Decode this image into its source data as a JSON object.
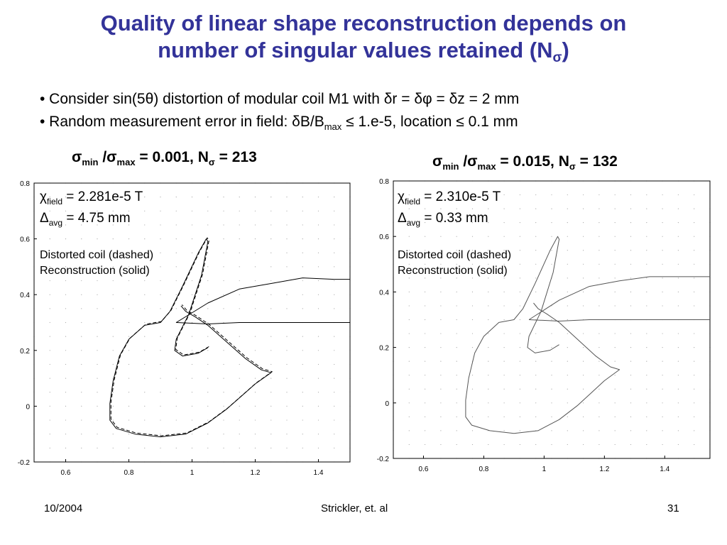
{
  "title": {
    "line1": "Quality of linear shape reconstruction depends on",
    "line2": "number of singular values retained (N",
    "line2_sub": "σ",
    "line2_end": ")"
  },
  "bullets": [
    {
      "text": "• Consider sin(5θ) distortion of modular coil M1 with δr = δφ = δz = 2 mm"
    },
    {
      "pre": "• Random measurement error in field: δB/B",
      "sub": "max",
      "post": " ≤ 1.e-5, location ≤ 0.1 mm"
    }
  ],
  "plots": [
    {
      "heading": {
        "s1": "σ",
        "s1sub": "min",
        "slash": " /",
        "s2": "σ",
        "s2sub": "max",
        "mid": " = 0.001, N",
        "nsub": "σ",
        "end": " = 213"
      },
      "chi": {
        "sym": "χ",
        "sub": "field",
        "val": " = 2.281e-5 T"
      },
      "delta": {
        "sym": "Δ",
        "sub": "avg",
        "val": " = 4.75 mm"
      },
      "note1": "Distorted coil (dashed)",
      "note2": "Reconstruction (solid)"
    },
    {
      "heading": {
        "s1": "σ",
        "s1sub": "min",
        "slash": " /",
        "s2": "σ",
        "s2sub": "max",
        "mid": " = 0.015, N",
        "nsub": "σ",
        "end": " = 132"
      },
      "chi": {
        "sym": "χ",
        "sub": "field",
        "val": " = 2.310e-5 T"
      },
      "delta": {
        "sym": "Δ",
        "sub": "avg",
        "val": " = 0.33 mm"
      },
      "note1": "Distorted coil (dashed)",
      "note2": "Reconstruction (solid)"
    }
  ],
  "chart_data": [
    {
      "type": "line",
      "xlim": [
        0.5,
        1.5
      ],
      "ylim": [
        -0.2,
        0.8
      ],
      "xticks": [
        0.6,
        0.8,
        1,
        1.2,
        1.4
      ],
      "yticks": [
        -0.2,
        0,
        0.2,
        0.4,
        0.6,
        0.8
      ],
      "xtick_labels": [
        "0.6",
        "0.8",
        "1",
        "1.2",
        "1.4"
      ],
      "ytick_labels": [
        "-0.2",
        "0",
        "0.2",
        "0.4",
        "0.6",
        "0.8"
      ],
      "grid": "dotted",
      "series": [
        {
          "style": "dashed",
          "x": [
            1.05,
            1.02,
            0.97,
            0.945,
            0.95,
            0.99,
            1.03,
            1.05,
            1.045,
            1.02,
            0.97,
            0.93,
            0.9,
            0.85,
            0.8,
            0.77,
            0.75,
            0.74,
            0.74,
            0.76,
            0.82,
            0.9,
            0.98,
            1.05,
            1.11,
            1.16,
            1.2,
            1.25,
            1.22,
            1.17,
            1.1,
            1.05,
            1.01,
            0.98,
            0.965
          ],
          "y": [
            0.21,
            0.19,
            0.18,
            0.2,
            0.24,
            0.33,
            0.47,
            0.59,
            0.6,
            0.55,
            0.43,
            0.34,
            0.3,
            0.29,
            0.24,
            0.18,
            0.09,
            0.01,
            -0.05,
            -0.08,
            -0.1,
            -0.11,
            -0.1,
            -0.06,
            -0.01,
            0.04,
            0.08,
            0.12,
            0.13,
            0.17,
            0.24,
            0.29,
            0.32,
            0.34,
            0.36
          ]
        },
        {
          "style": "solid",
          "x": [
            1.05,
            1.02,
            0.97,
            0.945,
            0.95,
            0.99,
            1.03,
            1.05,
            1.045,
            1.02,
            0.97,
            0.93,
            0.9,
            0.85,
            0.8,
            0.77,
            0.75,
            0.74,
            0.74,
            0.76,
            0.82,
            0.9,
            0.98,
            1.05,
            1.11,
            1.16,
            1.2,
            1.25,
            1.22,
            1.17,
            1.1,
            1.05,
            1.01,
            0.98,
            0.965
          ],
          "y": [
            0.21,
            0.19,
            0.18,
            0.2,
            0.24,
            0.33,
            0.47,
            0.59,
            0.6,
            0.55,
            0.43,
            0.34,
            0.3,
            0.29,
            0.24,
            0.18,
            0.09,
            0.01,
            -0.05,
            -0.08,
            -0.1,
            -0.11,
            -0.1,
            -0.06,
            -0.01,
            0.04,
            0.08,
            0.12,
            0.13,
            0.17,
            0.24,
            0.29,
            0.32,
            0.34,
            0.36
          ]
        },
        {
          "style": "solid",
          "x": [
            0.95,
            1.05,
            1.15,
            1.25,
            1.35,
            1.45,
            1.5
          ],
          "y": [
            0.3,
            0.37,
            0.42,
            0.44,
            0.46,
            0.455,
            0.455
          ]
        },
        {
          "style": "solid",
          "x": [
            0.95,
            1.05,
            1.15,
            1.25,
            1.35,
            1.45,
            1.5
          ],
          "y": [
            0.3,
            0.295,
            0.3,
            0.3,
            0.3,
            0.3,
            0.3
          ]
        }
      ]
    },
    {
      "type": "line",
      "xlim": [
        0.5,
        1.55
      ],
      "ylim": [
        -0.2,
        0.8
      ],
      "xticks": [
        0.6,
        0.8,
        1,
        1.2,
        1.4
      ],
      "yticks": [
        -0.2,
        0,
        0.2,
        0.4,
        0.6,
        0.8
      ],
      "xtick_labels": [
        "0.6",
        "0.8",
        "1",
        "1.2",
        "1.4"
      ],
      "ytick_labels": [
        "-0.2",
        "0",
        "0.2",
        "0.4",
        "0.6",
        "0.8"
      ],
      "grid": "dotted",
      "series": [
        {
          "style": "solid",
          "x": [
            1.05,
            1.02,
            0.97,
            0.945,
            0.95,
            0.99,
            1.03,
            1.05,
            1.045,
            1.02,
            0.97,
            0.93,
            0.9,
            0.85,
            0.8,
            0.77,
            0.75,
            0.74,
            0.74,
            0.76,
            0.82,
            0.9,
            0.98,
            1.05,
            1.11,
            1.16,
            1.2,
            1.25,
            1.22,
            1.17,
            1.1,
            1.05,
            1.01,
            0.98,
            0.965
          ],
          "y": [
            0.21,
            0.19,
            0.18,
            0.2,
            0.24,
            0.33,
            0.47,
            0.59,
            0.6,
            0.55,
            0.43,
            0.34,
            0.3,
            0.29,
            0.24,
            0.18,
            0.09,
            0.01,
            -0.05,
            -0.08,
            -0.1,
            -0.11,
            -0.1,
            -0.06,
            -0.01,
            0.04,
            0.08,
            0.12,
            0.13,
            0.17,
            0.24,
            0.29,
            0.32,
            0.34,
            0.36
          ]
        },
        {
          "style": "solid",
          "x": [
            0.95,
            1.05,
            1.15,
            1.25,
            1.35,
            1.45,
            1.55
          ],
          "y": [
            0.3,
            0.37,
            0.42,
            0.44,
            0.455,
            0.455,
            0.455
          ]
        },
        {
          "style": "solid",
          "x": [
            0.95,
            1.05,
            1.15,
            1.25,
            1.35,
            1.45,
            1.55
          ],
          "y": [
            0.3,
            0.295,
            0.3,
            0.3,
            0.3,
            0.3,
            0.3
          ]
        }
      ]
    }
  ],
  "footer": {
    "date": "10/2004",
    "author": "Strickler, et. al",
    "page": "31"
  }
}
